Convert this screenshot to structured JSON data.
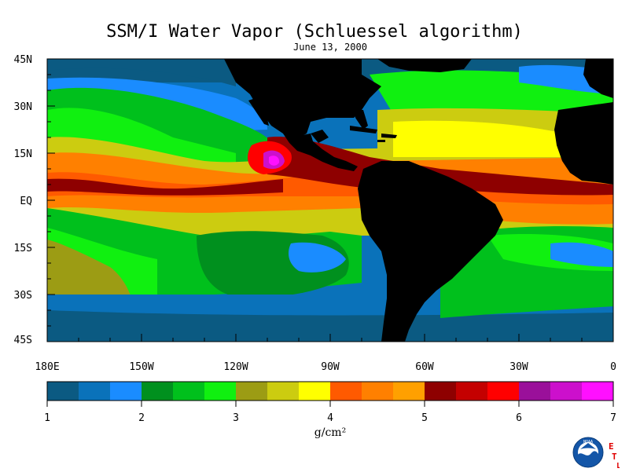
{
  "title": "SSM/I Water Vapor (Schluessel algorithm)",
  "date": "June 13, 2000",
  "map": {
    "lat_labels": [
      "45N",
      "30N",
      "15N",
      "EQ",
      "15S",
      "30S",
      "45S"
    ],
    "lon_labels": [
      "180E",
      "150W",
      "120W",
      "90W",
      "60W",
      "30W",
      "0"
    ],
    "land_color": "#000000"
  },
  "colorbar": {
    "unit_label": "g/cm²",
    "tick_labels": [
      "1",
      "2",
      "3",
      "4",
      "5",
      "6",
      "7"
    ],
    "range": [
      1,
      7
    ],
    "colors": [
      "#0b5a82",
      "#0a72ba",
      "#1a8cff",
      "#00901e",
      "#00c01c",
      "#10f010",
      "#9c9c14",
      "#cccc10",
      "#ffff00",
      "#ff5a00",
      "#ff8000",
      "#ffa000",
      "#8e0000",
      "#c40000",
      "#ff0000",
      "#9a109a",
      "#cc10cc",
      "#ff10ff"
    ]
  },
  "logo": {
    "name": "NOAA",
    "letters": [
      "E",
      "T",
      "L"
    ]
  }
}
